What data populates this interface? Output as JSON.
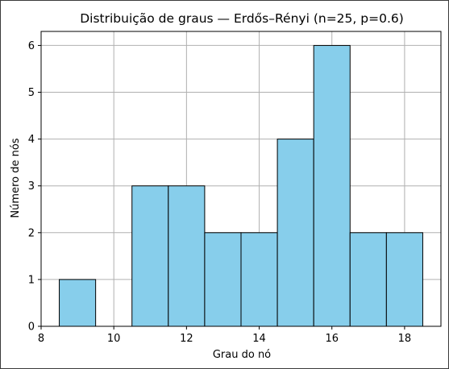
{
  "chart_data": {
    "type": "bar",
    "title": "Distribuição de graus — Erdős–Rényi (n=25, p=0.6)",
    "xlabel": "Grau do nó",
    "ylabel": "Número de nós",
    "x": [
      9,
      10,
      11,
      12,
      13,
      14,
      15,
      16,
      17,
      18
    ],
    "values": [
      1,
      0,
      3,
      3,
      2,
      2,
      4,
      6,
      2,
      2
    ],
    "bin_width": 1,
    "xlim": [
      8,
      19
    ],
    "ylim": [
      0,
      6.3
    ],
    "xticks": [
      8,
      10,
      12,
      14,
      16,
      18
    ],
    "yticks": [
      0,
      1,
      2,
      3,
      4,
      5,
      6
    ],
    "grid": true,
    "bar_color": "#87ceeb",
    "edge_color": "#000000"
  }
}
